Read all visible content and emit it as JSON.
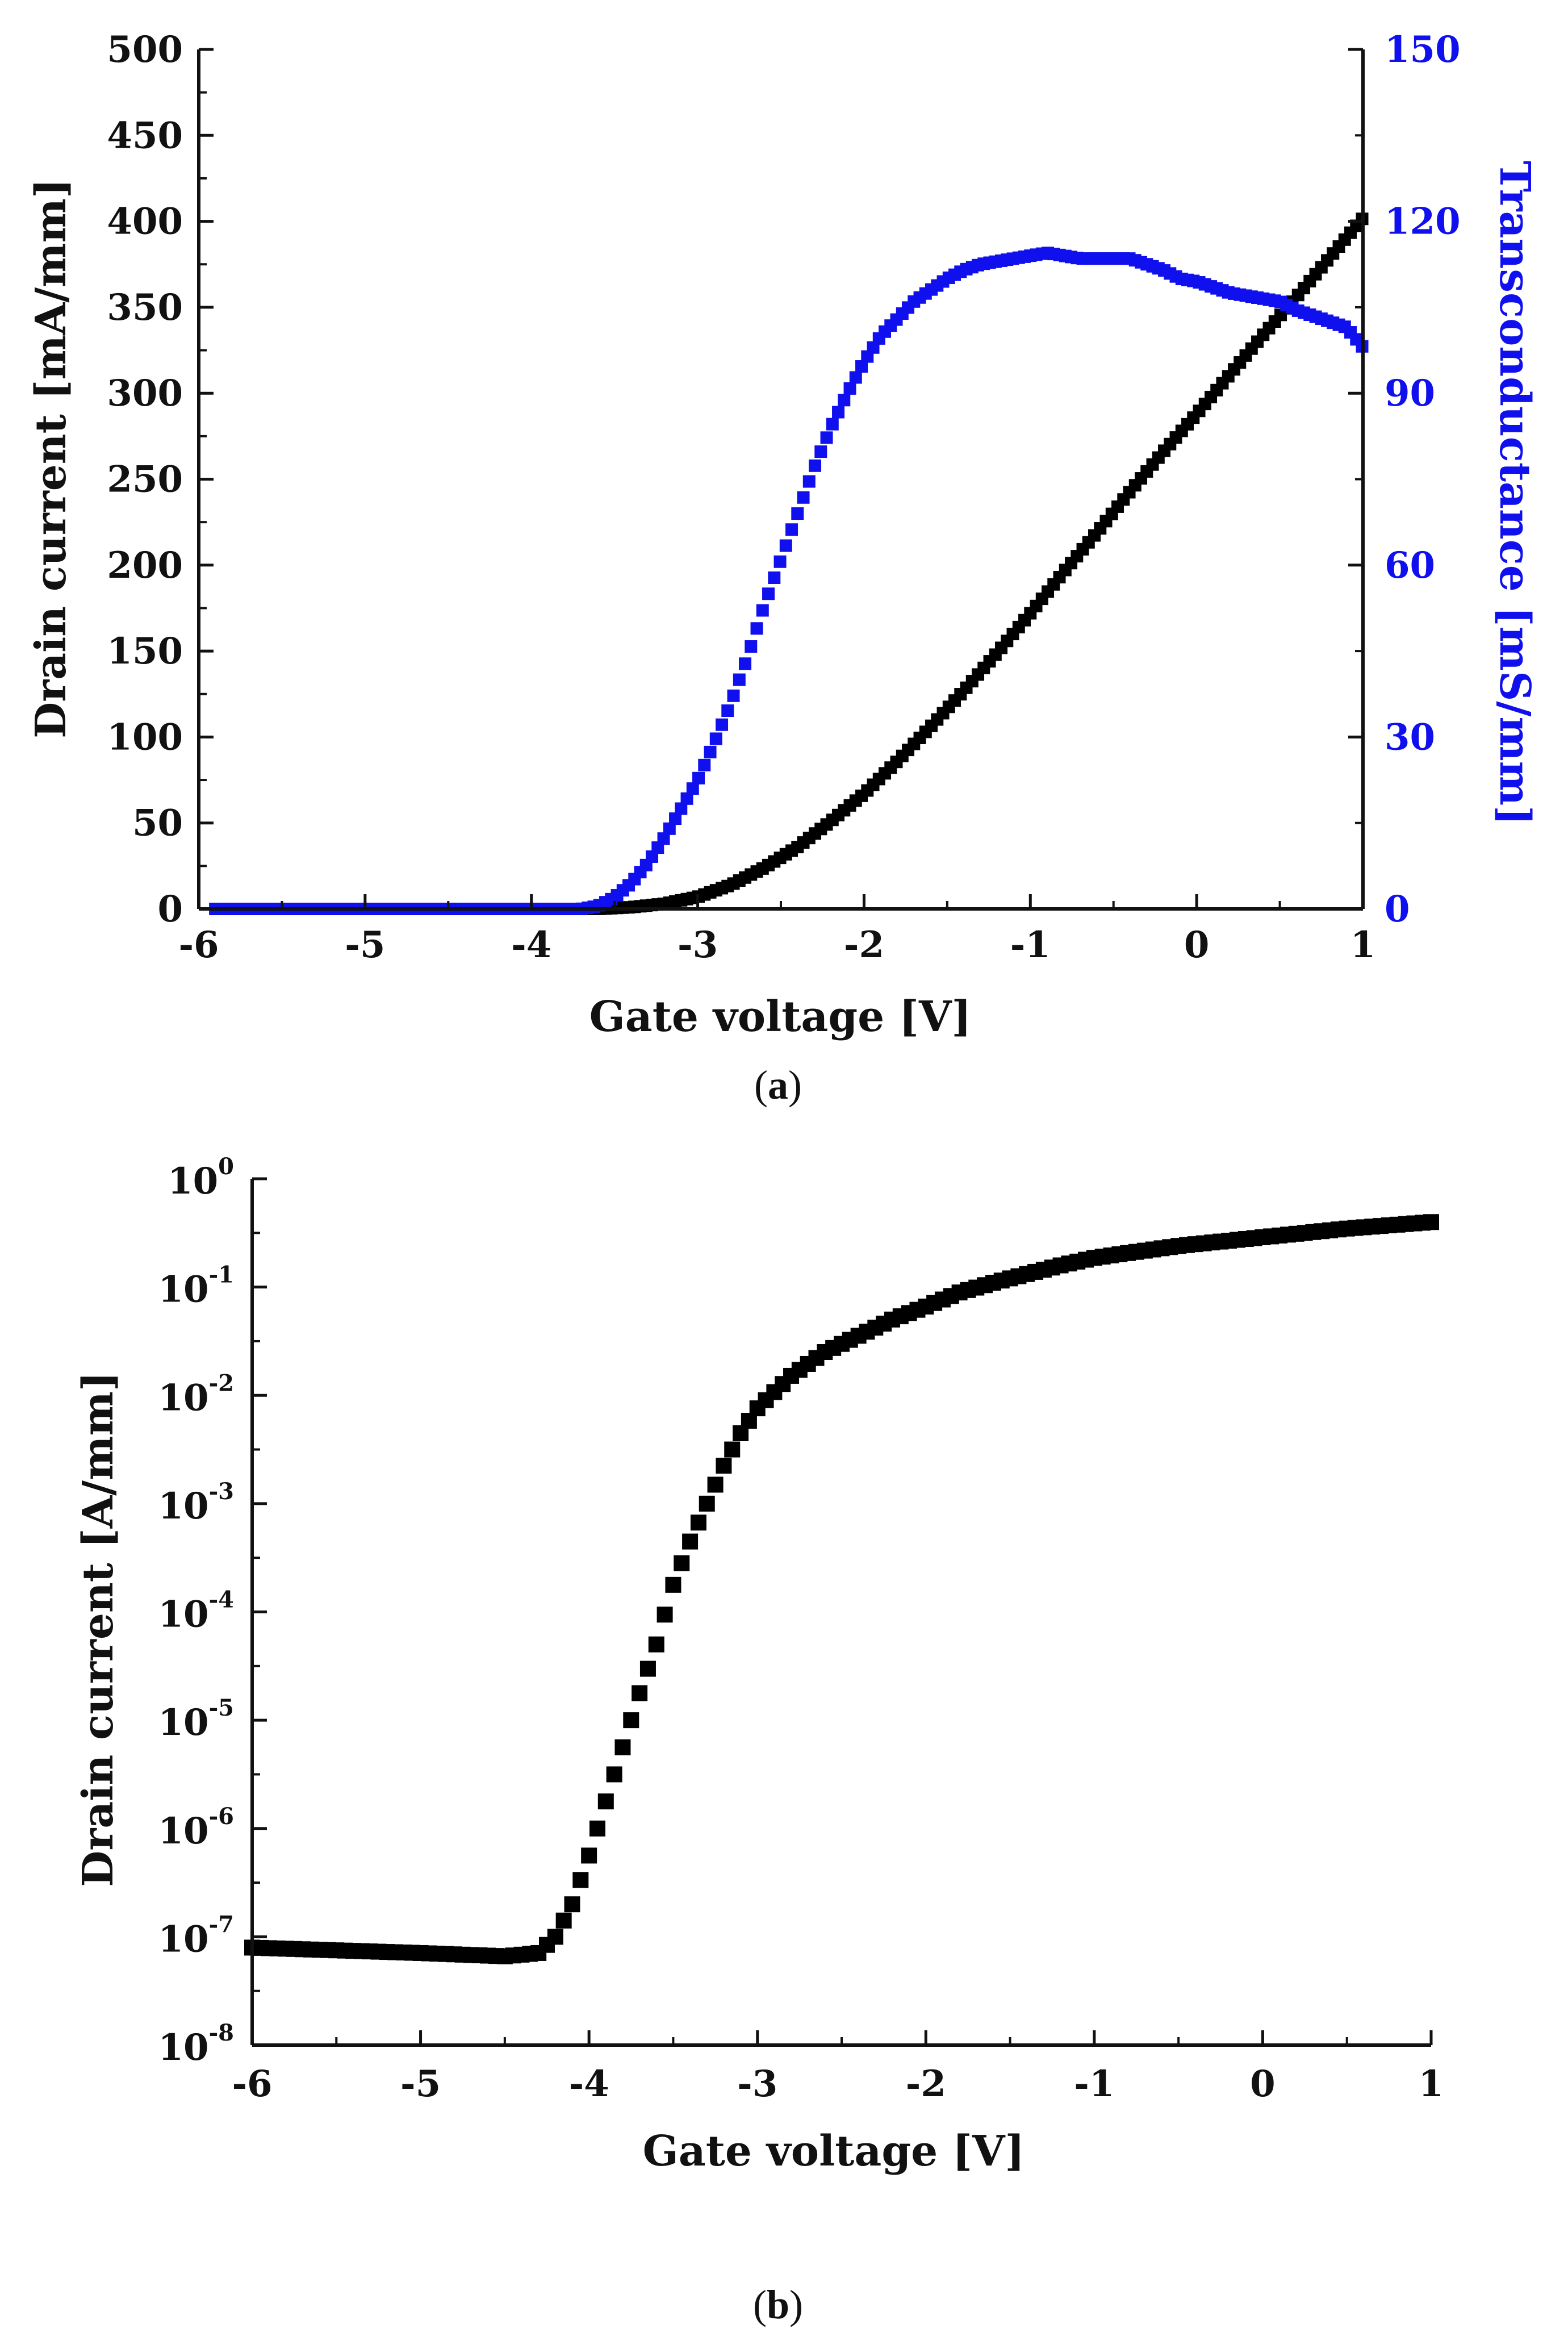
{
  "chart_data": [
    {
      "type": "scatter",
      "panel_label": "a",
      "xlabel": "Gate voltage [V]",
      "ylabel": "Drain current [mA/mm]",
      "y2label": "Transconductance [mS/mm]",
      "xlim": [
        -6,
        1
      ],
      "ylim": [
        0,
        500
      ],
      "y2lim": [
        0,
        150
      ],
      "x_ticks": [
        "-6",
        "-5",
        "-4",
        "-3",
        "-2",
        "-1",
        "0",
        "1"
      ],
      "y_ticks": [
        "0",
        "50",
        "100",
        "150",
        "200",
        "250",
        "300",
        "350",
        "400",
        "450",
        "500"
      ],
      "y2_ticks": [
        "0",
        "30",
        "60",
        "90",
        "120",
        "150"
      ],
      "colors": {
        "drain": "#000000",
        "gm": "#1010ee",
        "axis": "#111111"
      },
      "series": [
        {
          "name": "Drain current",
          "axis": "left",
          "x": [
            -6.0,
            -5.0,
            -4.0,
            -3.6,
            -3.4,
            -3.2,
            -3.0,
            -2.8,
            -2.6,
            -2.4,
            -2.2,
            -2.0,
            -1.8,
            -1.6,
            -1.4,
            -1.2,
            -1.0,
            -0.8,
            -0.6,
            -0.4,
            -0.2,
            0.0,
            0.2,
            0.4,
            0.6,
            0.8,
            1.0
          ],
          "values": [
            0,
            0,
            0,
            0,
            1,
            3,
            7,
            14,
            24,
            36,
            51,
            67,
            86,
            106,
            127,
            149,
            172,
            196,
            219,
            243,
            266,
            288,
            311,
            334,
            356,
            379,
            402
          ]
        },
        {
          "name": "Transconductance",
          "axis": "right",
          "x": [
            -6.0,
            -5.0,
            -4.0,
            -3.7,
            -3.6,
            -3.5,
            -3.4,
            -3.3,
            -3.2,
            -3.1,
            -3.0,
            -2.9,
            -2.8,
            -2.7,
            -2.6,
            -2.5,
            -2.4,
            -2.3,
            -2.2,
            -2.1,
            -2.0,
            -1.9,
            -1.8,
            -1.7,
            -1.6,
            -1.5,
            -1.4,
            -1.3,
            -1.2,
            -1.1,
            -1.0,
            -0.9,
            -0.8,
            -0.7,
            -0.6,
            -0.5,
            -0.4,
            -0.3,
            -0.2,
            -0.1,
            0.0,
            0.1,
            0.2,
            0.3,
            0.4,
            0.5,
            0.6,
            0.7,
            0.8,
            0.9,
            1.0
          ],
          "values": [
            0,
            0,
            0,
            0,
            0.5,
            2,
            4.5,
            8,
            12.5,
            17.5,
            22.5,
            29,
            36,
            44,
            53,
            61,
            69,
            77,
            84,
            90,
            95.5,
            100,
            103,
            106,
            108,
            110,
            111.5,
            112.5,
            113,
            113.5,
            114,
            114.5,
            114,
            113.5,
            113.5,
            113.5,
            113.5,
            112.5,
            111.5,
            110,
            109.5,
            108.5,
            107.5,
            107,
            106.5,
            106,
            104.5,
            103.5,
            102.5,
            101.5,
            98
          ]
        }
      ]
    },
    {
      "type": "scatter",
      "panel_label": "b",
      "xlabel": "Gate voltage [V]",
      "ylabel": "Drain current [A/mm]",
      "yscale": "log",
      "xlim": [
        -6,
        1
      ],
      "ylim_exp": [
        -8,
        0
      ],
      "x_ticks": [
        "-6",
        "-5",
        "-4",
        "-3",
        "-2",
        "-1",
        "0",
        "1"
      ],
      "y_tick_base": "10",
      "y_tick_exponents": [
        "-8",
        "-7",
        "-6",
        "-5",
        "-4",
        "-3",
        "-2",
        "-1",
        "0"
      ],
      "colors": {
        "drain": "#000000",
        "axis": "#111111"
      },
      "series": [
        {
          "name": "Drain current",
          "x": [
            -6.0,
            -5.0,
            -4.5,
            -4.3,
            -4.2,
            -4.1,
            -4.0,
            -3.9,
            -3.8,
            -3.7,
            -3.6,
            -3.5,
            -3.4,
            -3.3,
            -3.2,
            -3.1,
            -3.0,
            -2.8,
            -2.6,
            -2.4,
            -2.2,
            -2.0,
            -1.8,
            -1.6,
            -1.4,
            -1.2,
            -1.0,
            -0.5,
            0.0,
            0.5,
            1.0
          ],
          "log10_values": [
            -7.1,
            -7.15,
            -7.18,
            -7.15,
            -7.0,
            -6.7,
            -6.25,
            -5.75,
            -5.25,
            -4.75,
            -4.3,
            -3.75,
            -3.35,
            -3.0,
            -2.65,
            -2.35,
            -2.12,
            -1.82,
            -1.6,
            -1.45,
            -1.3,
            -1.18,
            -1.05,
            -0.96,
            -0.88,
            -0.8,
            -0.73,
            -0.62,
            -0.54,
            -0.46,
            -0.4
          ]
        }
      ]
    }
  ]
}
